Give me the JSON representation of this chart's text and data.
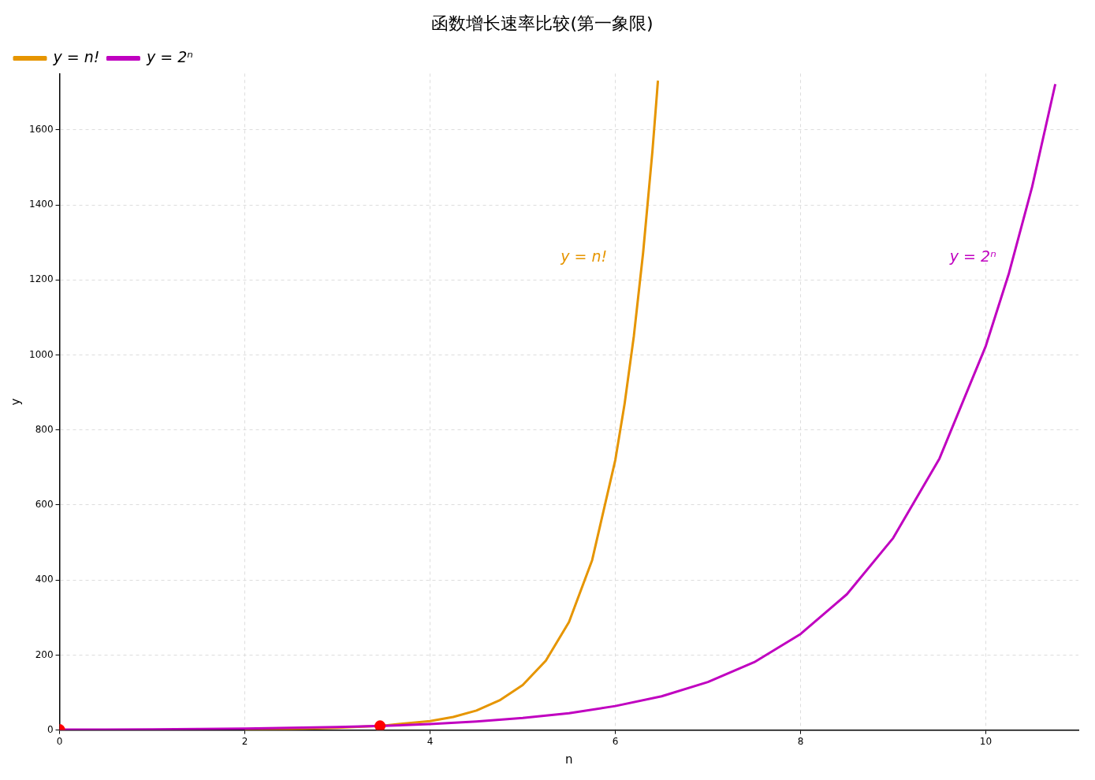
{
  "chart_data": {
    "type": "line",
    "title": "函数增长速率比较(第一象限)",
    "xlabel": "n",
    "ylabel": "y",
    "xlim": [
      0,
      11
    ],
    "xticks": [
      0,
      2,
      4,
      6,
      8,
      10
    ],
    "ylim": [
      0,
      1750
    ],
    "yticks": [
      0,
      200,
      400,
      600,
      800,
      1000,
      1200,
      1400,
      1600
    ],
    "grid": true,
    "legend": "top left",
    "marker": "none",
    "series": [
      {
        "name": "y = n!",
        "color": "#e69500",
        "x": [
          2,
          2.5,
          3,
          3.5,
          4,
          4.25,
          4.5,
          4.75,
          5,
          5.25,
          5.5,
          5.75,
          6,
          6.1,
          6.2,
          6.3,
          6.4,
          6.45,
          6.46
        ],
        "values": [
          2,
          3,
          6,
          12,
          24,
          35,
          52,
          79,
          120,
          185,
          288,
          453,
          720,
          869,
          1050,
          1272,
          1541,
          1698,
          1731
        ]
      },
      {
        "name": "y = 2ⁿ",
        "color": "#c000c0",
        "x": [
          0,
          0.5,
          1,
          1.5,
          2,
          2.5,
          3,
          3.5,
          4,
          4.5,
          5,
          5.5,
          6,
          6.5,
          7,
          7.5,
          8,
          8.5,
          9,
          9.5,
          10,
          10.25,
          10.5,
          10.75
        ],
        "values": [
          1,
          1,
          2,
          3,
          4,
          6,
          8,
          11,
          16,
          23,
          32,
          45,
          64,
          90,
          128,
          181,
          256,
          362,
          512,
          724,
          1024,
          1218,
          1448,
          1722
        ]
      },
      {
        "type": "scatter",
        "color": "#ff0000",
        "marker": "circle",
        "x": [
          0,
          3.46
        ],
        "values": [
          1,
          11
        ]
      }
    ],
    "annotations": [
      "y = n!",
      "y = 2ⁿ"
    ]
  }
}
